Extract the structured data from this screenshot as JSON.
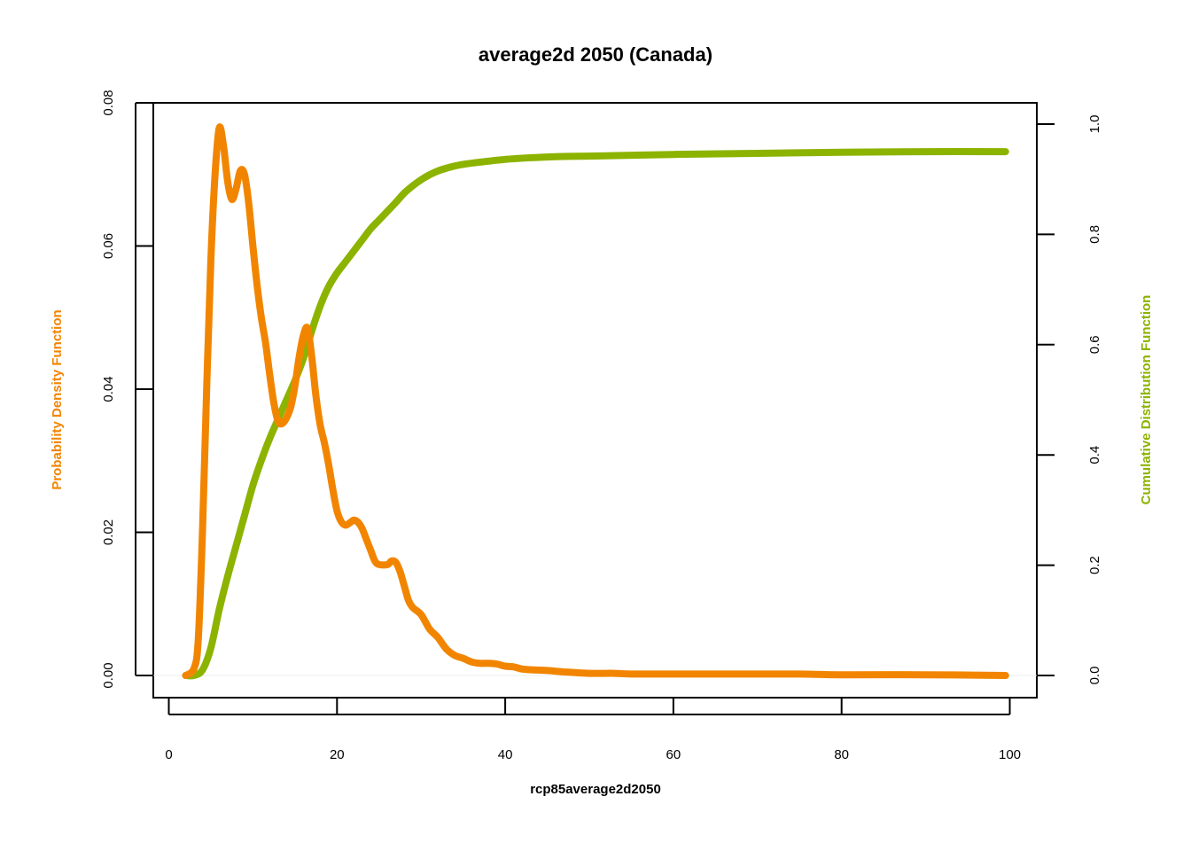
{
  "chart_data": {
    "type": "line",
    "title": "average2d 2050 (Canada)",
    "xlabel": "rcp85average2d2050",
    "ylabel_left": "Probability Density Function",
    "ylabel_right": "Cumulative Distribution Function",
    "xlim": [
      0,
      100
    ],
    "ylim_left": [
      0,
      0.08
    ],
    "ylim_right": [
      0,
      1.0
    ],
    "x_ticks": [
      "0",
      "20",
      "40",
      "60",
      "80",
      "100"
    ],
    "y_ticks_left": [
      "0.00",
      "0.02",
      "0.04",
      "0.06",
      "0.08"
    ],
    "y_ticks_right": [
      "0.0",
      "0.2",
      "0.4",
      "0.6",
      "0.8",
      "1.0"
    ],
    "grid": false,
    "colors": {
      "pdf": "#f28500",
      "cdf": "#8cb300"
    },
    "series": [
      {
        "axis": "left",
        "points": [
          [
            2,
            0
          ],
          [
            3,
            0.001
          ],
          [
            3.5,
            0.005
          ],
          [
            4,
            0.02
          ],
          [
            4.5,
            0.04
          ],
          [
            5,
            0.058
          ],
          [
            5.5,
            0.07
          ],
          [
            6,
            0.0765
          ],
          [
            6.5,
            0.074
          ],
          [
            7,
            0.069
          ],
          [
            7.5,
            0.0665
          ],
          [
            8,
            0.068
          ],
          [
            8.5,
            0.0705
          ],
          [
            9,
            0.07
          ],
          [
            9.5,
            0.066
          ],
          [
            10,
            0.06
          ],
          [
            10.5,
            0.0545
          ],
          [
            11,
            0.05
          ],
          [
            11.5,
            0.0465
          ],
          [
            12,
            0.042
          ],
          [
            12.5,
            0.038
          ],
          [
            13,
            0.0355
          ],
          [
            13.5,
            0.0352
          ],
          [
            14,
            0.036
          ],
          [
            14.5,
            0.0375
          ],
          [
            15,
            0.0405
          ],
          [
            15.5,
            0.0445
          ],
          [
            16,
            0.0475
          ],
          [
            16.5,
            0.0485
          ],
          [
            17,
            0.0445
          ],
          [
            17.5,
            0.039
          ],
          [
            18,
            0.035
          ],
          [
            18.5,
            0.0325
          ],
          [
            19,
            0.0295
          ],
          [
            19.5,
            0.026
          ],
          [
            20,
            0.023
          ],
          [
            20.5,
            0.0215
          ],
          [
            21,
            0.021
          ],
          [
            21.5,
            0.0213
          ],
          [
            22,
            0.0217
          ],
          [
            22.5,
            0.0214
          ],
          [
            23,
            0.0205
          ],
          [
            23.5,
            0.019
          ],
          [
            24,
            0.0175
          ],
          [
            24.5,
            0.016
          ],
          [
            25,
            0.0155
          ],
          [
            26,
            0.0155
          ],
          [
            26.5,
            0.016
          ],
          [
            27,
            0.0158
          ],
          [
            27.5,
            0.0145
          ],
          [
            28,
            0.0125
          ],
          [
            28.5,
            0.0105
          ],
          [
            29,
            0.0095
          ],
          [
            30,
            0.0085
          ],
          [
            31,
            0.0065
          ],
          [
            32,
            0.0053
          ],
          [
            33,
            0.0037
          ],
          [
            34,
            0.0028
          ],
          [
            35,
            0.0024
          ],
          [
            36,
            0.0019
          ],
          [
            37,
            0.0017
          ],
          [
            38,
            0.0017
          ],
          [
            39,
            0.0016
          ],
          [
            40,
            0.0013
          ],
          [
            41,
            0.0012
          ],
          [
            42,
            0.0009
          ],
          [
            43,
            0.0008
          ],
          [
            45,
            0.0007
          ],
          [
            47,
            0.0005
          ],
          [
            50,
            0.0003
          ],
          [
            53,
            0.0003
          ],
          [
            55,
            0.0002
          ],
          [
            60,
            0.0002
          ],
          [
            65,
            0.0002
          ],
          [
            70,
            0.0002
          ],
          [
            75,
            0.0002
          ],
          [
            80,
            0.0001
          ],
          [
            90,
            0.0001
          ],
          [
            99.5,
            0.0
          ]
        ]
      },
      {
        "axis": "right",
        "points": [
          [
            2,
            0
          ],
          [
            3,
            0.0
          ],
          [
            4,
            0.01
          ],
          [
            5,
            0.05
          ],
          [
            6,
            0.12
          ],
          [
            7,
            0.18
          ],
          [
            8,
            0.235
          ],
          [
            9,
            0.29
          ],
          [
            10,
            0.345
          ],
          [
            11,
            0.39
          ],
          [
            12,
            0.43
          ],
          [
            13,
            0.465
          ],
          [
            14,
            0.5
          ],
          [
            15,
            0.535
          ],
          [
            16,
            0.575
          ],
          [
            17,
            0.625
          ],
          [
            18,
            0.67
          ],
          [
            19,
            0.705
          ],
          [
            20,
            0.73
          ],
          [
            21,
            0.75
          ],
          [
            22,
            0.77
          ],
          [
            23,
            0.79
          ],
          [
            24,
            0.81
          ],
          [
            25,
            0.826
          ],
          [
            26,
            0.842
          ],
          [
            27,
            0.858
          ],
          [
            28,
            0.875
          ],
          [
            29,
            0.888
          ],
          [
            30,
            0.899
          ],
          [
            31,
            0.908
          ],
          [
            32,
            0.915
          ],
          [
            33,
            0.92
          ],
          [
            34,
            0.924
          ],
          [
            35,
            0.927
          ],
          [
            37,
            0.931
          ],
          [
            40,
            0.936
          ],
          [
            43,
            0.939
          ],
          [
            46,
            0.941
          ],
          [
            50,
            0.942
          ],
          [
            60,
            0.945
          ],
          [
            70,
            0.947
          ],
          [
            80,
            0.949
          ],
          [
            90,
            0.95
          ],
          [
            99.5,
            0.95
          ]
        ]
      }
    ]
  }
}
